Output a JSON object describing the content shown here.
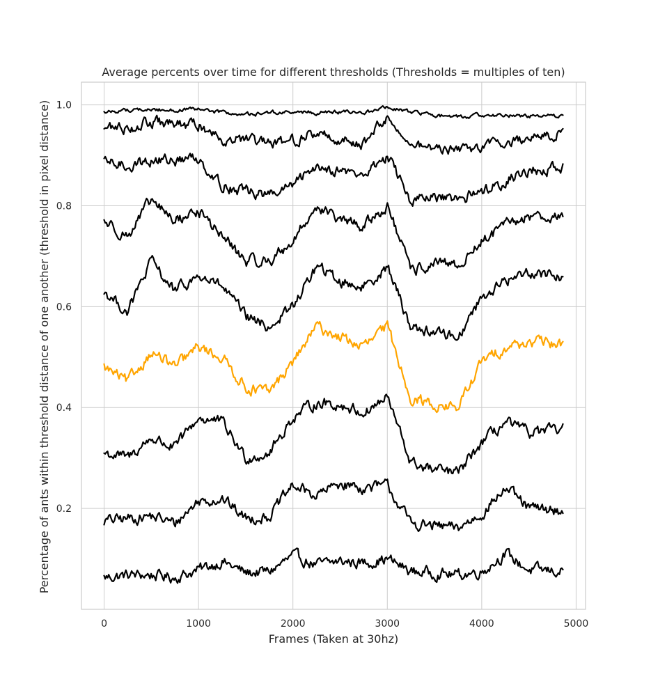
{
  "chart_data": {
    "type": "line",
    "title": "Average percents over time for different thresholds (Thresholds = multiples of ten)",
    "xlabel": "Frames (Taken at 30hz)",
    "ylabel": "Percentage of ants within threshold distance of one another (threshold in pixel distance)",
    "xlim": [
      -240,
      5100
    ],
    "ylim": [
      0.0,
      1.045
    ],
    "xticks": [
      0,
      1000,
      2000,
      3000,
      4000,
      5000
    ],
    "xtick_labels": [
      "0",
      "1000",
      "2000",
      "3000",
      "4000",
      "5000"
    ],
    "yticks": [
      0.2,
      0.4,
      0.6,
      0.8,
      1.0
    ],
    "ytick_labels": [
      "0.2",
      "0.4",
      "0.6",
      "0.8",
      "1.0"
    ],
    "grid": true,
    "legend": "none",
    "colors": {
      "default": "#000000",
      "highlight": "#ffa500"
    },
    "x": [
      0,
      250,
      500,
      750,
      1000,
      1250,
      1500,
      1750,
      2000,
      2250,
      2500,
      2750,
      3000,
      3250,
      3500,
      3750,
      4000,
      4250,
      4500,
      4860
    ],
    "series": [
      {
        "color": "#000000",
        "values": [
          0.063,
          0.068,
          0.068,
          0.063,
          0.078,
          0.095,
          0.072,
          0.075,
          0.105,
          0.088,
          0.095,
          0.092,
          0.1,
          0.075,
          0.072,
          0.068,
          0.075,
          0.11,
          0.078,
          0.075
        ]
      },
      {
        "color": "#000000",
        "values": [
          0.175,
          0.18,
          0.185,
          0.17,
          0.215,
          0.22,
          0.18,
          0.185,
          0.245,
          0.225,
          0.25,
          0.24,
          0.245,
          0.17,
          0.165,
          0.16,
          0.19,
          0.24,
          0.2,
          0.195
        ]
      },
      {
        "color": "#000000",
        "values": [
          0.31,
          0.3,
          0.34,
          0.32,
          0.38,
          0.37,
          0.3,
          0.31,
          0.38,
          0.41,
          0.405,
          0.39,
          0.42,
          0.29,
          0.275,
          0.27,
          0.33,
          0.37,
          0.35,
          0.355
        ]
      },
      {
        "color": "#ffa500",
        "values": [
          0.48,
          0.45,
          0.51,
          0.48,
          0.52,
          0.5,
          0.44,
          0.43,
          0.49,
          0.56,
          0.54,
          0.52,
          0.56,
          0.42,
          0.405,
          0.4,
          0.49,
          0.52,
          0.53,
          0.525
        ]
      },
      {
        "color": "#000000",
        "values": [
          0.63,
          0.59,
          0.69,
          0.63,
          0.66,
          0.64,
          0.58,
          0.56,
          0.6,
          0.68,
          0.65,
          0.64,
          0.68,
          0.56,
          0.55,
          0.54,
          0.62,
          0.65,
          0.67,
          0.66
        ]
      },
      {
        "color": "#000000",
        "values": [
          0.77,
          0.74,
          0.81,
          0.77,
          0.79,
          0.74,
          0.69,
          0.69,
          0.73,
          0.8,
          0.77,
          0.76,
          0.8,
          0.67,
          0.685,
          0.68,
          0.73,
          0.76,
          0.78,
          0.78
        ]
      },
      {
        "color": "#000000",
        "values": [
          0.885,
          0.88,
          0.89,
          0.89,
          0.895,
          0.84,
          0.83,
          0.82,
          0.84,
          0.88,
          0.87,
          0.86,
          0.9,
          0.81,
          0.815,
          0.81,
          0.83,
          0.85,
          0.87,
          0.875
        ]
      },
      {
        "color": "#000000",
        "values": [
          0.955,
          0.955,
          0.965,
          0.96,
          0.96,
          0.935,
          0.93,
          0.92,
          0.93,
          0.945,
          0.93,
          0.925,
          0.975,
          0.92,
          0.915,
          0.91,
          0.92,
          0.925,
          0.935,
          0.945
        ]
      },
      {
        "color": "#000000",
        "values": [
          0.985,
          0.99,
          0.99,
          0.99,
          0.99,
          0.985,
          0.98,
          0.985,
          0.985,
          0.985,
          0.985,
          0.985,
          0.995,
          0.985,
          0.98,
          0.975,
          0.98,
          0.98,
          0.978,
          0.978
        ]
      }
    ]
  }
}
